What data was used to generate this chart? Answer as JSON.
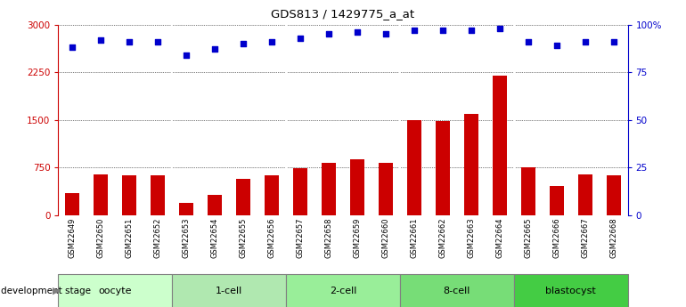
{
  "title": "GDS813 / 1429775_a_at",
  "samples": [
    "GSM22649",
    "GSM22650",
    "GSM22651",
    "GSM22652",
    "GSM22653",
    "GSM22654",
    "GSM22655",
    "GSM22656",
    "GSM22657",
    "GSM22658",
    "GSM22659",
    "GSM22660",
    "GSM22661",
    "GSM22662",
    "GSM22663",
    "GSM22664",
    "GSM22665",
    "GSM22666",
    "GSM22667",
    "GSM22668"
  ],
  "counts": [
    350,
    640,
    630,
    620,
    190,
    310,
    570,
    630,
    730,
    820,
    870,
    820,
    1500,
    1480,
    1590,
    2200,
    750,
    450,
    640,
    620
  ],
  "percentile": [
    88,
    92,
    91,
    91,
    84,
    87,
    90,
    91,
    93,
    95,
    96,
    95,
    97,
    97,
    97,
    98,
    91,
    89,
    91,
    91
  ],
  "stages": [
    {
      "label": "oocyte",
      "start": 0,
      "end": 4,
      "color": "#ccffcc"
    },
    {
      "label": "1-cell",
      "start": 4,
      "end": 8,
      "color": "#aaddaa"
    },
    {
      "label": "2-cell",
      "start": 8,
      "end": 12,
      "color": "#99ee99"
    },
    {
      "label": "8-cell",
      "start": 12,
      "end": 16,
      "color": "#77dd77"
    },
    {
      "label": "blastocyst",
      "start": 16,
      "end": 20,
      "color": "#55cc55"
    }
  ],
  "bar_color": "#cc0000",
  "dot_color": "#0000cc",
  "ylim_left": [
    0,
    3000
  ],
  "ylim_right": [
    0,
    100
  ],
  "yticks_left": [
    0,
    750,
    1500,
    2250,
    3000
  ],
  "yticks_right": [
    0,
    25,
    50,
    75,
    100
  ],
  "bg_color": "#ffffff",
  "xtick_bg": "#cccccc"
}
